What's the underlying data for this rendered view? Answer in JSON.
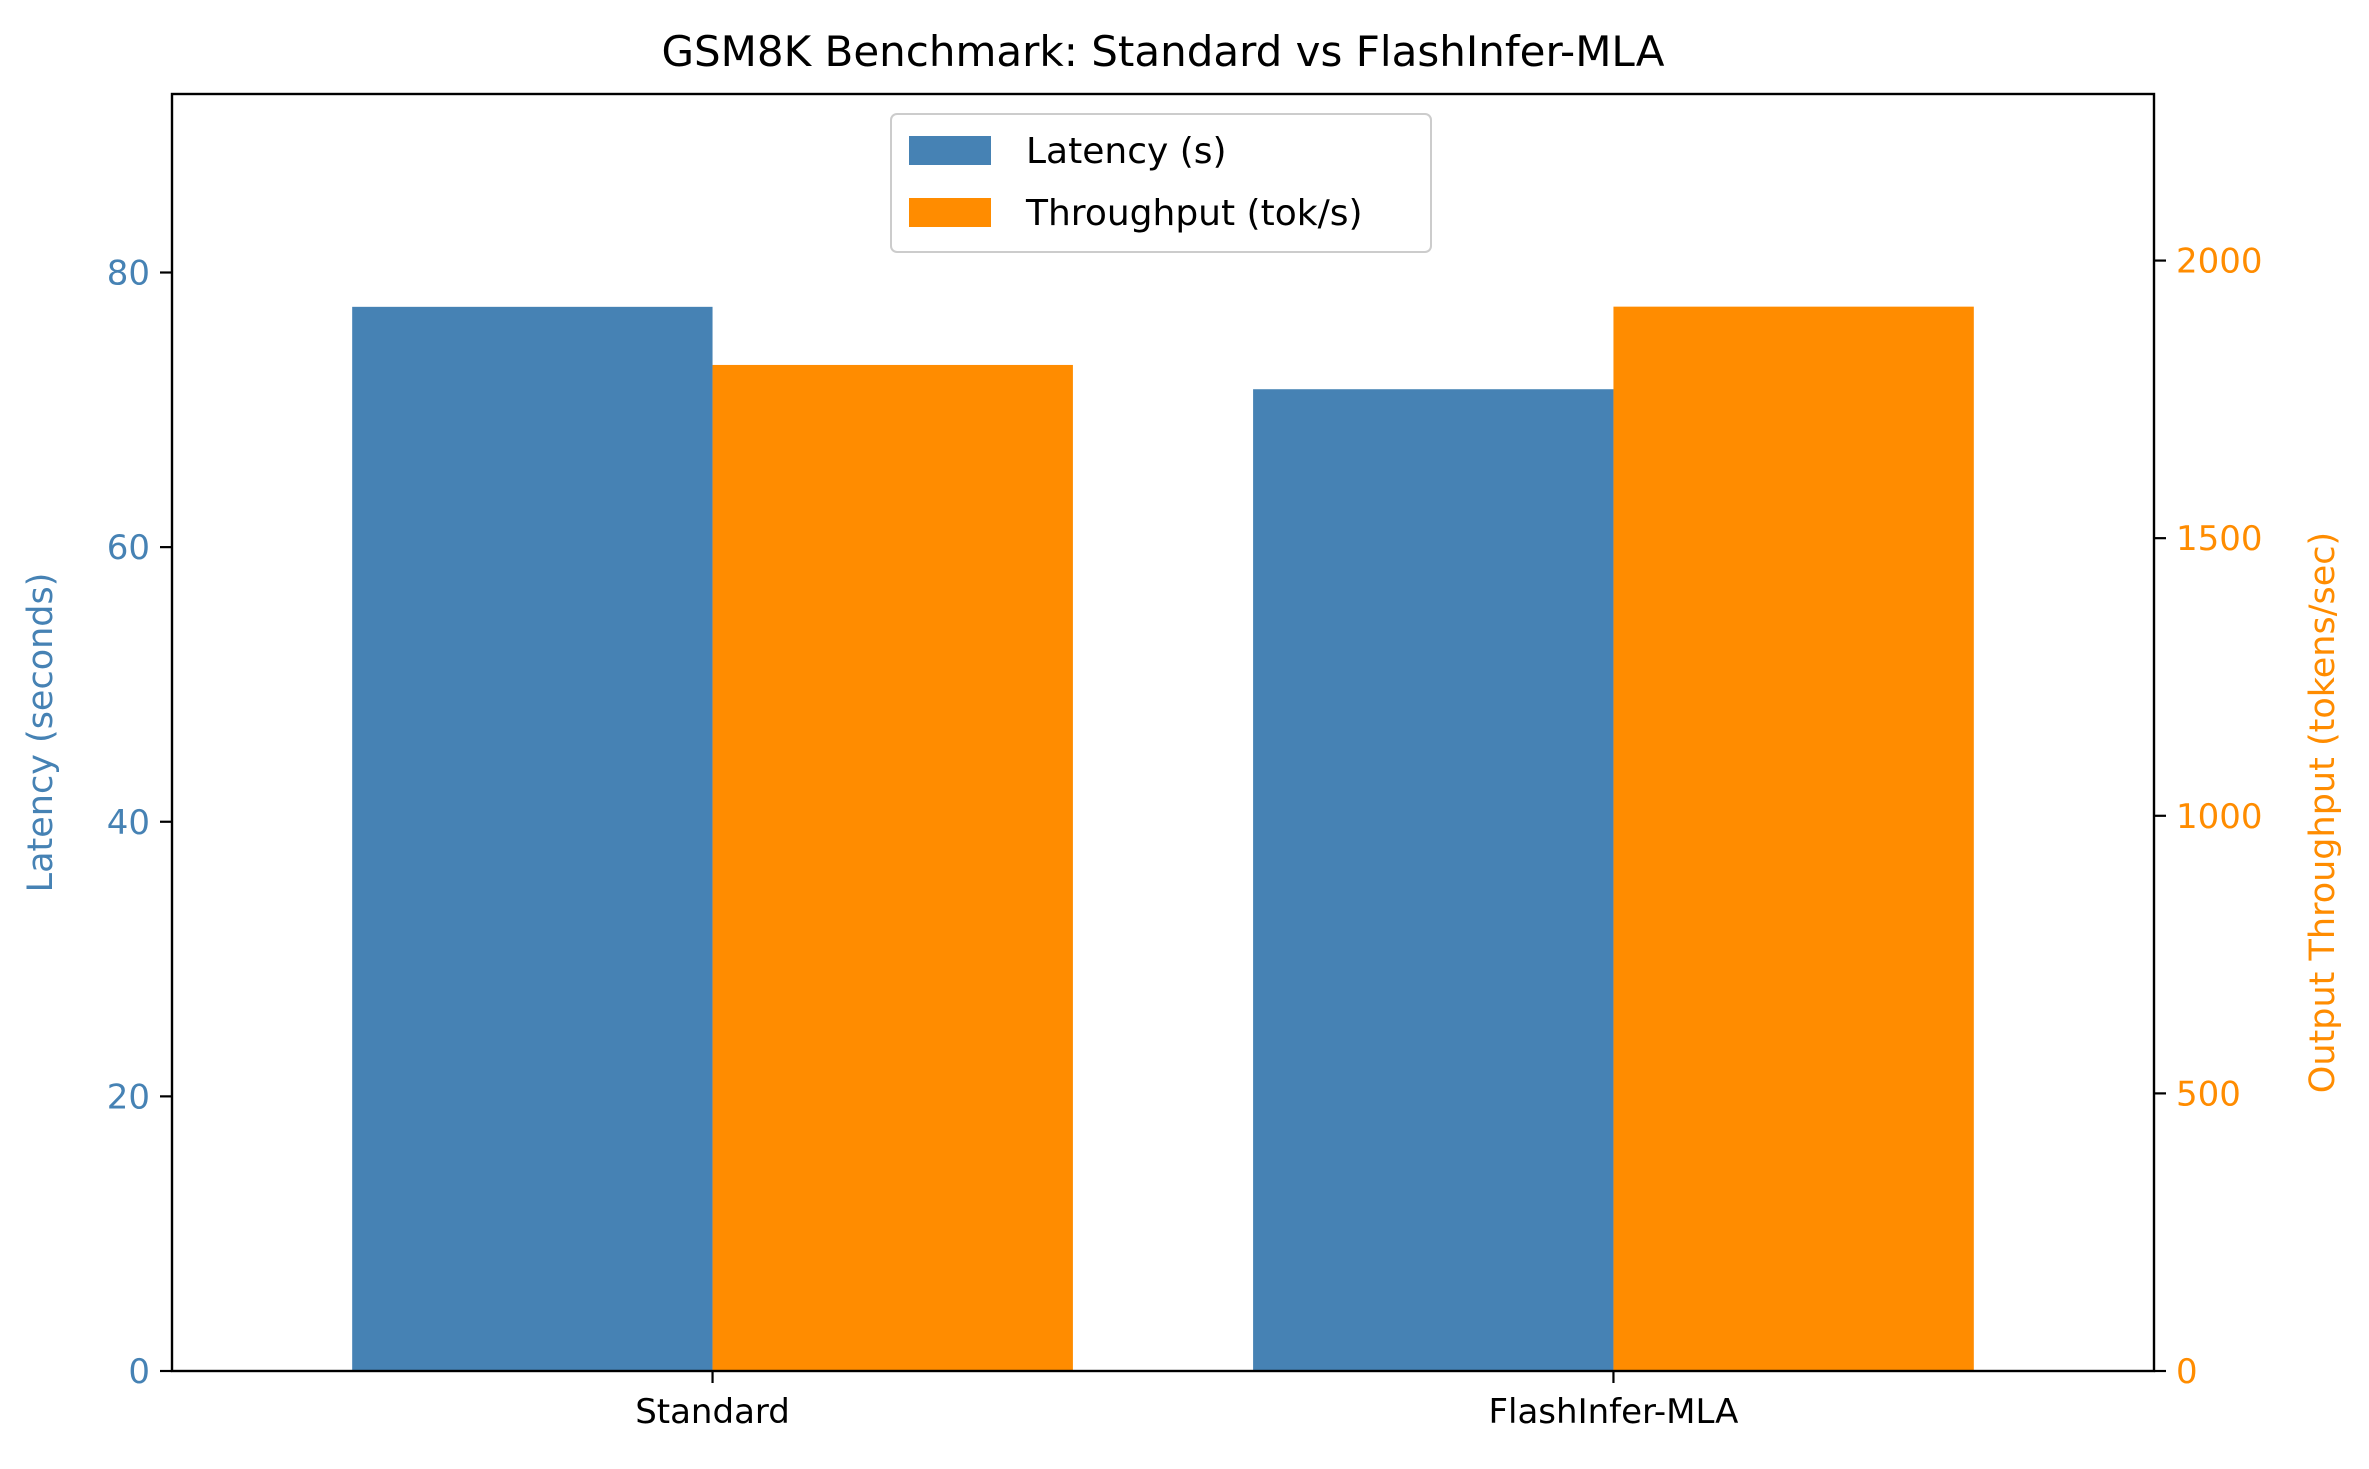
{
  "chart_data": {
    "type": "bar",
    "title": "GSM8K Benchmark: Standard vs FlashInfer-MLA",
    "categories": [
      "Standard",
      "FlashInfer-MLA"
    ],
    "series": [
      {
        "name": "Latency (s)",
        "axis": "left",
        "color": "#4682b4",
        "values": [
          77.5,
          71.5
        ]
      },
      {
        "name": "Throughput (tok/s)",
        "axis": "right",
        "color": "#ff8c00",
        "values": [
          1812,
          1917
        ]
      }
    ],
    "ylabel_left": "Latency (seconds)",
    "ylabel_right": "Output Throughput (tokens/sec)",
    "ylim_left": [
      0,
      93
    ],
    "ylim_right": [
      0,
      2300
    ],
    "yticks_left": [
      0,
      20,
      40,
      60,
      80
    ],
    "yticks_right": [
      0,
      500,
      1000,
      1500,
      2000
    ],
    "left_axis_color": "#4682b4",
    "right_axis_color": "#ff8c00",
    "grid": false,
    "legend_position": "upper-center"
  }
}
